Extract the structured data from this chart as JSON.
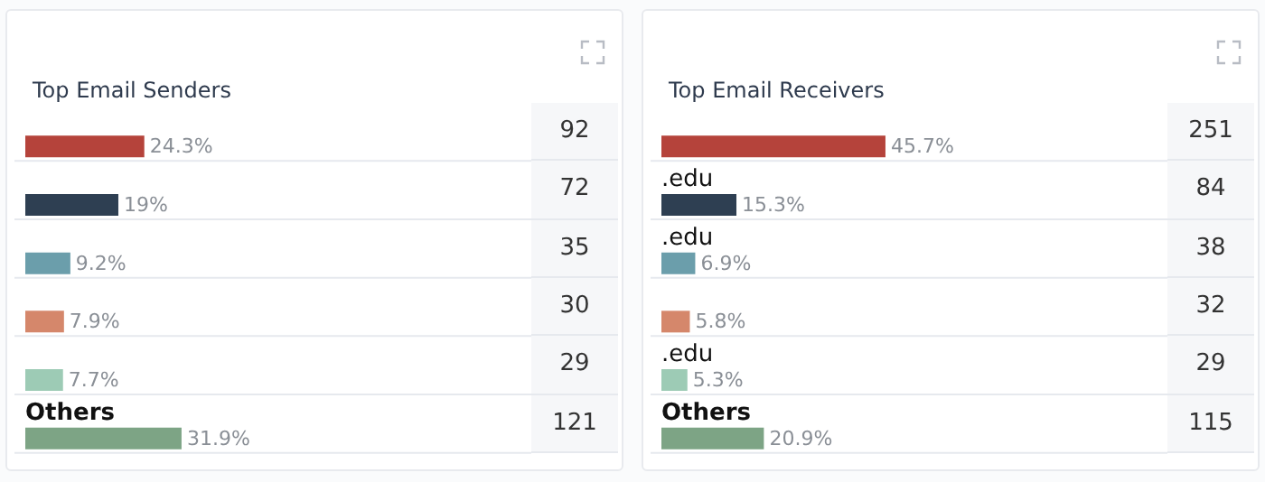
{
  "chart_data": [
    {
      "type": "bar",
      "orientation": "horizontal",
      "title": "Top Email Senders",
      "categories": [
        null,
        null,
        null,
        null,
        null,
        "Others"
      ],
      "grid": "y",
      "series": [
        {
          "values": [
            24.3,
            19,
            9.2,
            7.9,
            7.7,
            31.9
          ],
          "colors": [
            "#b5433b",
            "#2e3f52",
            "#6b9eab",
            "#d5876b",
            "#9dcbb5",
            "#7da485"
          ],
          "value_labels": [
            "24.3%",
            "19%",
            "9.2%",
            "7.9%",
            "7.7%",
            "31.9%"
          ]
        }
      ]
    },
    {
      "type": "other",
      "values": [
        92,
        72,
        35,
        30,
        29,
        121
      ],
      "data_labels": true
    },
    {
      "type": "bar",
      "orientation": "horizontal",
      "title": "Top Email Receivers",
      "categories": [
        null,
        ".edu",
        ".edu",
        null,
        ".edu",
        "Others"
      ],
      "grid": "y",
      "series": [
        {
          "values": [
            45.7,
            15.3,
            6.9,
            5.8,
            5.3,
            20.9
          ],
          "colors": [
            "#b5433b",
            "#2e3f52",
            "#6b9eab",
            "#d5876b",
            "#9dcbb5",
            "#7da485"
          ],
          "value_labels": [
            "45.7%",
            "15.3%",
            "6.9%",
            "5.8%",
            "5.3%",
            "20.9%"
          ]
        }
      ]
    },
    {
      "type": "other",
      "values": [
        251,
        84,
        38,
        32,
        29,
        115
      ],
      "data_labels": true
    }
  ]
}
